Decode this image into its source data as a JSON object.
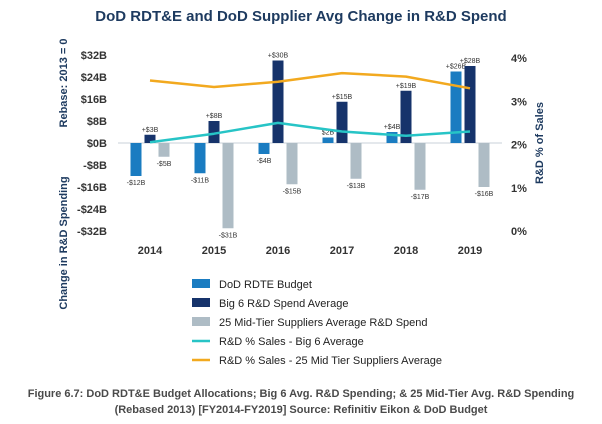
{
  "chart_data": {
    "type": "bar",
    "title": "DoD RDT&E and DoD Supplier Avg Change in R&D Spend",
    "categories": [
      "2014",
      "2015",
      "2016",
      "2017",
      "2018",
      "2019"
    ],
    "ylabel_left_top": "Rebase: 2013 = 0",
    "ylabel_left_bottom": "Change in R&D Spending",
    "ylabel_right": "R&D % of Sales",
    "left_axis": {
      "ylim": [
        -32,
        32
      ],
      "ticks": [
        "$32B",
        "$24B",
        "$16B",
        "$8B",
        "$0B",
        "-$8B",
        "-$16B",
        "-$24B",
        "-$32B"
      ],
      "tick_values": [
        32,
        24,
        16,
        8,
        0,
        -8,
        -16,
        -24,
        -32
      ]
    },
    "right_axis": {
      "ylim": [
        0,
        4
      ],
      "ticks": [
        "4%",
        "3%",
        "2%",
        "1%",
        "0%"
      ],
      "tick_values": [
        4,
        3,
        2,
        1,
        0
      ]
    },
    "series": [
      {
        "name": "DoD RDTE Budget",
        "kind": "bar",
        "color": "#1a7cc1",
        "values": [
          -12,
          -11,
          -4,
          2,
          4,
          26
        ],
        "labels": [
          "-$12B",
          "-$11B",
          "-$4B",
          "$2B",
          "+$4B",
          "+$26B"
        ]
      },
      {
        "name": "Big 6 R&D Spend Average",
        "kind": "bar",
        "color": "#16336b",
        "values": [
          3,
          8,
          30,
          15,
          19,
          28
        ],
        "labels": [
          "+$3B",
          "+$8B",
          "+$30B",
          "+$15B",
          "+$19B",
          "+$28B"
        ]
      },
      {
        "name": "25 Mid-Tier Suppliers Average R&D Spend",
        "kind": "bar",
        "color": "#aebcc5",
        "values": [
          -5,
          -31,
          -15,
          -13,
          -17,
          -16
        ],
        "labels": [
          "-$5B",
          "-$31B",
          "-$15B",
          "-$13B",
          "-$17B",
          "-$16B"
        ]
      },
      {
        "name": "R&D % Sales - Big 6 Average",
        "kind": "line",
        "color": "#27c4c6",
        "values": [
          2.05,
          2.25,
          2.5,
          2.3,
          2.2,
          2.3
        ]
      },
      {
        "name": "R&D % Sales - 25 Mid Tier Suppliers Average",
        "kind": "line",
        "color": "#f2a91f",
        "values": [
          3.48,
          3.33,
          3.45,
          3.65,
          3.57,
          3.3
        ]
      }
    ]
  },
  "caption": {
    "line1": "Figure 6.7: DoD RDT&E Budget Allocations; Big 6 Avg.  R&D Spending; & 25 Mid-Tier Avg.  R&D Spending",
    "line2": "(Rebased 2013) [FY2014-FY2019]  Source: Refinitiv Eikon & DoD Budget"
  }
}
